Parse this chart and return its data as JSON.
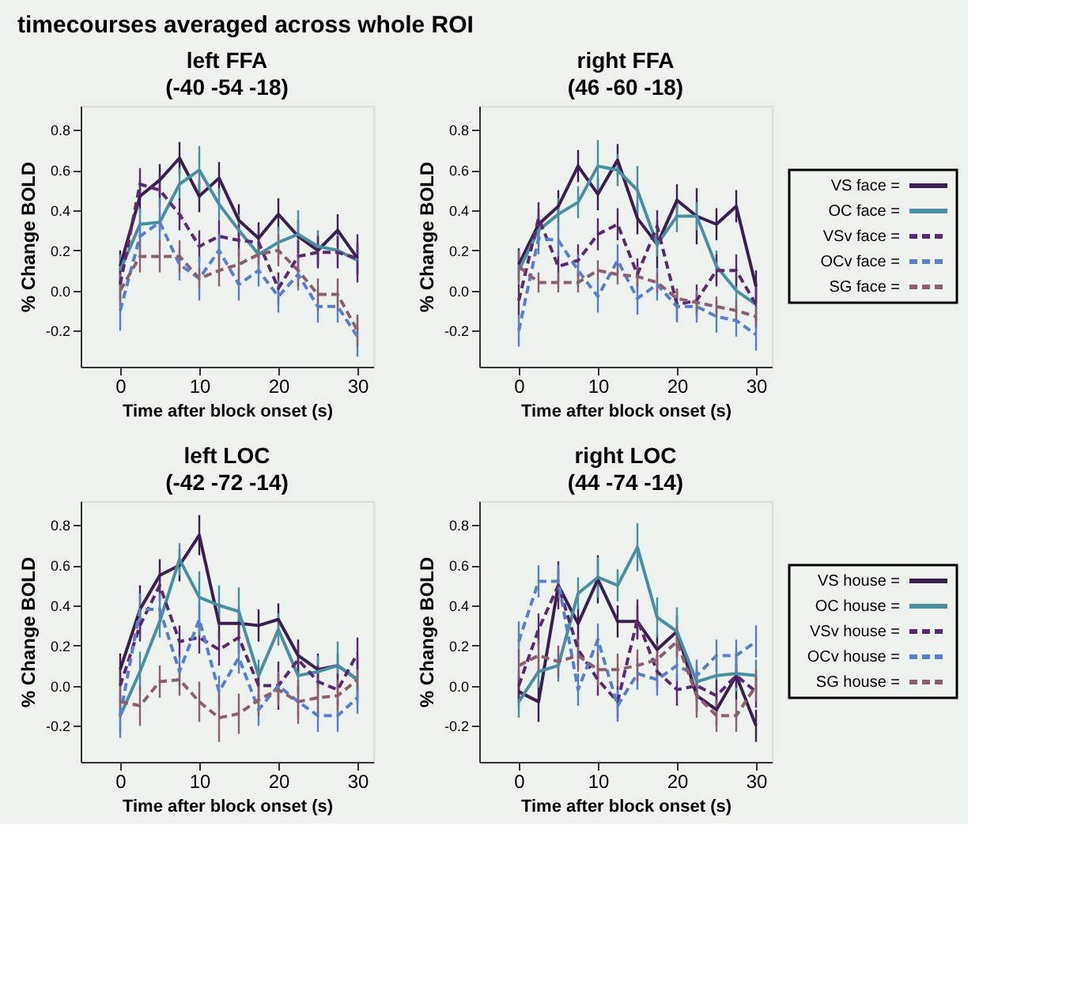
{
  "chart_data": [
    {
      "type": "line",
      "title": "left FFA",
      "subtitle": "(-40 -54 -18)",
      "annotations": [
        "timecourses averaged across whole ROI"
      ],
      "xlabel": "Time after block onset (s)",
      "ylabel": "% Change  BOLD",
      "x": [
        0,
        2.5,
        5,
        7.5,
        10,
        12.5,
        15,
        17.5,
        20,
        22.5,
        25,
        27.5,
        30
      ],
      "xlim": [
        -5,
        32
      ],
      "xticks": [
        0,
        10,
        20,
        30
      ],
      "ylim": [
        -0.38,
        0.92
      ],
      "yticks": [
        {
          "value": -0.2,
          "label": "-0.2"
        },
        {
          "value": 0,
          "label": "0.0"
        },
        {
          "value": 0.2,
          "label": "0.2"
        },
        {
          "value": 0.4,
          "label": "0.4"
        },
        {
          "value": 0.6,
          "label": "0.6"
        },
        {
          "value": 0.8,
          "label": "0.8"
        }
      ],
      "grid": false,
      "legend": false,
      "marker": "none",
      "series": [
        {
          "color": "#3b1f4f",
          "line_style": "solid",
          "values": [
            0.12,
            0.47,
            0.55,
            0.66,
            0.47,
            0.56,
            0.35,
            0.26,
            0.38,
            0.27,
            0.2,
            0.3,
            0.16
          ],
          "errors": [
            0.08,
            0.08,
            0.08,
            0.08,
            0.08,
            0.08,
            0.08,
            0.08,
            0.08,
            0.08,
            0.08,
            0.08,
            0.08
          ]
        },
        {
          "color": "#4a8fa0",
          "line_style": "solid",
          "values": [
            0.1,
            0.33,
            0.34,
            0.53,
            0.6,
            0.43,
            0.3,
            0.18,
            0.24,
            0.28,
            0.22,
            0.2,
            0.15
          ],
          "errors": [
            0.08,
            0.08,
            0.05,
            0.08,
            0.12,
            0.08,
            0.08,
            0.08,
            0.08,
            0.12,
            0.08,
            0.08,
            0.08
          ]
        },
        {
          "color": "#5a2a6e",
          "line_style": "dashed",
          "values": [
            0.03,
            0.53,
            0.5,
            0.38,
            0.22,
            0.27,
            0.25,
            0.24,
            0.01,
            0.17,
            0.19,
            0.19,
            0.16
          ],
          "errors": [
            0.08,
            0.08,
            0.08,
            0.08,
            0.08,
            0.08,
            0.08,
            0.08,
            0.08,
            0.08,
            0.08,
            0.08,
            0.12
          ]
        },
        {
          "color": "#5a7fc8",
          "line_style": "dashed",
          "values": [
            -0.1,
            0.27,
            0.34,
            0.13,
            0.06,
            0.2,
            0.03,
            0.1,
            -0.03,
            0.08,
            -0.08,
            -0.08,
            -0.23
          ],
          "errors": [
            0.1,
            0.08,
            0.12,
            0.08,
            0.11,
            0.08,
            0.08,
            0.08,
            0.08,
            0.08,
            0.08,
            0.08,
            0.1
          ]
        },
        {
          "color": "#8a6070",
          "line_style": "dashed",
          "values": [
            0.0,
            0.17,
            0.17,
            0.17,
            0.06,
            0.1,
            0.13,
            0.18,
            0.2,
            0.1,
            -0.02,
            -0.02,
            -0.2
          ],
          "errors": [
            0.08,
            0.08,
            0.08,
            0.08,
            0.05,
            0.08,
            0.08,
            0.05,
            0.08,
            0.08,
            0.08,
            0.08,
            0.08
          ]
        }
      ]
    },
    {
      "type": "line",
      "title": "right FFA",
      "subtitle": "(46 -60 -18)",
      "xlabel": "Time after block onset (s)",
      "ylabel": "% Change  BOLD",
      "x": [
        0,
        2.5,
        5,
        7.5,
        10,
        12.5,
        15,
        17.5,
        20,
        22.5,
        25,
        27.5,
        30
      ],
      "xlim": [
        -5,
        32
      ],
      "xticks": [
        0,
        10,
        20,
        30
      ],
      "ylim": [
        -0.38,
        0.92
      ],
      "yticks": [
        {
          "value": -0.2,
          "label": "-0.2"
        },
        {
          "value": 0,
          "label": "0.0"
        },
        {
          "value": 0.2,
          "label": "0.2"
        },
        {
          "value": 0.4,
          "label": "0.4"
        },
        {
          "value": 0.6,
          "label": "0.6"
        },
        {
          "value": 0.8,
          "label": "0.8"
        }
      ],
      "grid": false,
      "legend": "right",
      "marker": "none",
      "series": [
        {
          "name": "VS face =",
          "color": "#3b1f4f",
          "line_style": "solid",
          "values": [
            0.13,
            0.33,
            0.42,
            0.62,
            0.48,
            0.65,
            0.36,
            0.23,
            0.45,
            0.37,
            0.33,
            0.42,
            0.02
          ],
          "errors": [
            0.08,
            0.08,
            0.08,
            0.08,
            0.08,
            0.08,
            0.08,
            0.12,
            0.08,
            0.14,
            0.08,
            0.08,
            0.08
          ]
        },
        {
          "name": "OC face =",
          "color": "#4a8fa0",
          "line_style": "solid",
          "values": [
            0.1,
            0.3,
            0.38,
            0.44,
            0.62,
            0.6,
            0.5,
            0.23,
            0.37,
            0.37,
            0.12,
            0.0,
            -0.07
          ],
          "errors": [
            0.08,
            0.08,
            0.08,
            0.08,
            0.13,
            0.08,
            0.12,
            0.06,
            0.08,
            0.07,
            0.08,
            0.08,
            0.08
          ]
        },
        {
          "name": "VSv face =",
          "color": "#5a2a6e",
          "line_style": "dashed",
          "values": [
            -0.05,
            0.36,
            0.12,
            0.15,
            0.28,
            0.33,
            0.08,
            0.32,
            -0.07,
            -0.05,
            0.1,
            0.1,
            -0.07
          ],
          "errors": [
            0.08,
            0.08,
            0.08,
            0.08,
            0.08,
            0.08,
            0.08,
            0.08,
            0.08,
            0.08,
            0.08,
            0.08,
            0.12
          ]
        },
        {
          "name": "OCv face =",
          "color": "#5a7fc8",
          "line_style": "dashed",
          "values": [
            -0.2,
            0.26,
            0.25,
            0.1,
            -0.03,
            0.15,
            -0.04,
            0.03,
            -0.08,
            -0.08,
            -0.13,
            -0.15,
            -0.22
          ],
          "errors": [
            0.08,
            0.08,
            0.08,
            0.08,
            0.08,
            0.08,
            0.08,
            0.08,
            0.08,
            0.08,
            0.08,
            0.08,
            0.08
          ]
        },
        {
          "name": "SG face =",
          "color": "#8a6070",
          "line_style": "dashed",
          "values": [
            0.12,
            0.04,
            0.04,
            0.04,
            0.1,
            0.08,
            0.07,
            0.04,
            -0.04,
            -0.06,
            -0.08,
            -0.1,
            -0.13
          ],
          "errors": [
            0.08,
            0.05,
            0.05,
            0.05,
            0.05,
            0.05,
            0.05,
            0.05,
            0.05,
            0.05,
            0.05,
            0.05,
            0.05
          ]
        }
      ]
    },
    {
      "type": "line",
      "title": "left LOC",
      "subtitle": "(-42 -72 -14)",
      "xlabel": "Time after block onset (s)",
      "ylabel": "% Change  BOLD",
      "x": [
        0,
        2.5,
        5,
        7.5,
        10,
        12.5,
        15,
        17.5,
        20,
        22.5,
        25,
        27.5,
        30
      ],
      "xlim": [
        -5,
        32
      ],
      "xticks": [
        0,
        10,
        20,
        30
      ],
      "ylim": [
        -0.38,
        0.92
      ],
      "yticks": [
        {
          "value": -0.2,
          "label": "-0.2"
        },
        {
          "value": 0,
          "label": "0.0"
        },
        {
          "value": 0.2,
          "label": "0.2"
        },
        {
          "value": 0.4,
          "label": "0.4"
        },
        {
          "value": 0.6,
          "label": "0.6"
        },
        {
          "value": 0.8,
          "label": "0.8"
        }
      ],
      "grid": false,
      "legend": false,
      "marker": "none",
      "series": [
        {
          "color": "#3b1f4f",
          "line_style": "solid",
          "values": [
            0.08,
            0.38,
            0.55,
            0.6,
            0.75,
            0.31,
            0.31,
            0.3,
            0.33,
            0.15,
            0.08,
            0.1,
            0.03
          ],
          "errors": [
            0.08,
            0.12,
            0.08,
            0.08,
            0.1,
            0.08,
            0.08,
            0.08,
            0.08,
            0.08,
            0.08,
            0.06,
            0.12
          ]
        },
        {
          "color": "#4a8fa0",
          "line_style": "solid",
          "values": [
            -0.15,
            0.07,
            0.32,
            0.63,
            0.44,
            0.4,
            0.37,
            0.05,
            0.28,
            0.05,
            0.07,
            0.1,
            0.03
          ],
          "errors": [
            0.08,
            0.1,
            0.08,
            0.08,
            0.13,
            0.1,
            0.12,
            0.08,
            0.08,
            0.08,
            0.08,
            0.12,
            0.09
          ]
        },
        {
          "color": "#5a2a6e",
          "line_style": "dashed",
          "values": [
            0.0,
            0.3,
            0.5,
            0.22,
            0.24,
            0.18,
            0.24,
            0.0,
            0.0,
            0.13,
            0.02,
            -0.02,
            0.16
          ],
          "errors": [
            0.08,
            0.08,
            0.08,
            0.08,
            0.08,
            0.08,
            0.08,
            0.08,
            0.12,
            0.08,
            0.08,
            0.08,
            0.08
          ]
        },
        {
          "color": "#5a7fc8",
          "line_style": "dashed",
          "values": [
            -0.15,
            0.38,
            0.38,
            0.07,
            0.33,
            -0.03,
            0.14,
            -0.12,
            0.0,
            -0.08,
            -0.15,
            -0.15,
            -0.06
          ],
          "errors": [
            0.11,
            0.08,
            0.08,
            0.08,
            0.08,
            0.08,
            0.08,
            0.08,
            0.07,
            0.08,
            0.08,
            0.08,
            0.08
          ]
        },
        {
          "color": "#8a6070",
          "line_style": "dashed",
          "values": [
            -0.08,
            -0.1,
            0.02,
            0.03,
            -0.08,
            -0.16,
            -0.14,
            -0.07,
            -0.02,
            -0.08,
            -0.06,
            -0.05,
            0.03
          ],
          "errors": [
            0.08,
            0.1,
            0.08,
            0.08,
            0.1,
            0.12,
            0.1,
            0.08,
            0.08,
            0.11,
            0.08,
            0.08,
            0.05
          ]
        }
      ]
    },
    {
      "type": "line",
      "title": "right LOC",
      "subtitle": "(44 -74 -14)",
      "xlabel": "Time after block onset (s)",
      "ylabel": "% Change  BOLD",
      "x": [
        0,
        2.5,
        5,
        7.5,
        10,
        12.5,
        15,
        17.5,
        20,
        22.5,
        25,
        27.5,
        30
      ],
      "xlim": [
        -5,
        32
      ],
      "xticks": [
        0,
        10,
        20,
        30
      ],
      "ylim": [
        -0.38,
        0.92
      ],
      "yticks": [
        {
          "value": -0.2,
          "label": "-0.2"
        },
        {
          "value": 0,
          "label": "0.0"
        },
        {
          "value": 0.2,
          "label": "0.2"
        },
        {
          "value": 0.4,
          "label": "0.4"
        },
        {
          "value": 0.6,
          "label": "0.6"
        },
        {
          "value": 0.8,
          "label": "0.8"
        }
      ],
      "grid": false,
      "legend": "right",
      "marker": "none",
      "series": [
        {
          "name": "VS house =",
          "color": "#3b1f4f",
          "line_style": "solid",
          "values": [
            -0.03,
            -0.08,
            0.5,
            0.31,
            0.53,
            0.32,
            0.32,
            0.18,
            0.27,
            -0.05,
            -0.12,
            0.05,
            -0.2
          ],
          "errors": [
            0.08,
            0.1,
            0.08,
            0.08,
            0.12,
            0.08,
            0.08,
            0.08,
            0.08,
            0.08,
            0.08,
            0.12,
            0.08
          ]
        },
        {
          "name": "OC house =",
          "color": "#4a8fa0",
          "line_style": "solid",
          "values": [
            -0.08,
            0.07,
            0.1,
            0.46,
            0.54,
            0.5,
            0.69,
            0.34,
            0.27,
            0.02,
            0.05,
            0.06,
            0.05
          ],
          "errors": [
            0.08,
            0.08,
            0.08,
            0.08,
            0.1,
            0.08,
            0.12,
            0.1,
            0.12,
            0.08,
            0.08,
            0.09,
            0.08
          ]
        },
        {
          "name": "VSv house =",
          "color": "#5a2a6e",
          "line_style": "dashed",
          "values": [
            0.0,
            0.28,
            0.5,
            0.18,
            0.03,
            -0.08,
            0.33,
            0.07,
            -0.02,
            0.0,
            -0.05,
            0.05,
            -0.03
          ],
          "errors": [
            0.08,
            0.08,
            0.12,
            0.08,
            0.08,
            0.08,
            0.1,
            0.08,
            0.08,
            0.08,
            0.08,
            0.06,
            0.08
          ]
        },
        {
          "name": "OCv house =",
          "color": "#5a7fc8",
          "line_style": "dashed",
          "values": [
            0.22,
            0.52,
            0.52,
            -0.02,
            0.23,
            -0.1,
            0.06,
            0.03,
            0.1,
            0.05,
            0.15,
            0.15,
            0.22
          ],
          "errors": [
            0.1,
            0.08,
            0.08,
            0.08,
            0.08,
            0.08,
            0.08,
            0.08,
            0.08,
            0.08,
            0.08,
            0.08,
            0.08
          ]
        },
        {
          "name": "SG house =",
          "color": "#8a6070",
          "line_style": "dashed",
          "values": [
            0.1,
            0.15,
            0.12,
            0.15,
            0.08,
            0.08,
            0.1,
            0.13,
            0.22,
            -0.05,
            -0.15,
            -0.15,
            0.0
          ],
          "errors": [
            0.08,
            0.08,
            0.08,
            0.08,
            0.08,
            0.08,
            0.08,
            0.08,
            0.08,
            0.11,
            0.08,
            0.08,
            0.08
          ]
        }
      ]
    }
  ]
}
